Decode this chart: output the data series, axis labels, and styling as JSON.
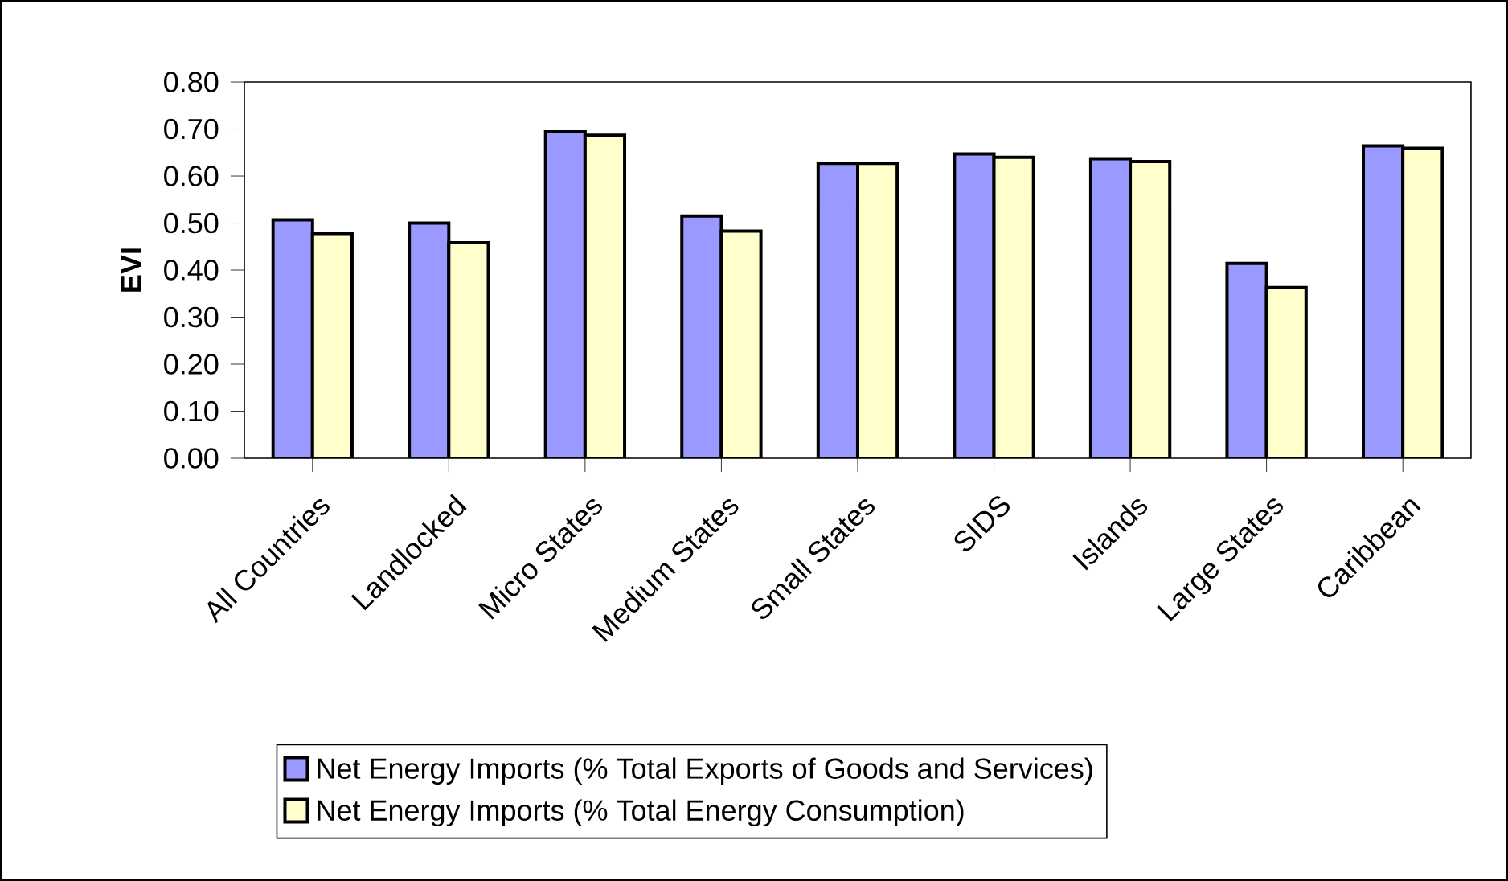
{
  "chart_data": {
    "type": "bar",
    "ylabel": "EVI",
    "legend": "bottom",
    "categories": [
      "All Countries",
      "Landlocked",
      "Micro States",
      "Medium States",
      "Small States",
      "SIDS",
      "Islands",
      "Large States",
      "Caribbean"
    ],
    "series": [
      {
        "name": "Net Energy Imports (% Total Exports of Goods and Services)",
        "color": "#9999ff",
        "values": [
          0.507,
          0.5,
          0.694,
          0.515,
          0.627,
          0.647,
          0.637,
          0.414,
          0.664
        ]
      },
      {
        "name": "Net Energy Imports (% Total Energy Consumption)",
        "color": "#ffffcc",
        "values": [
          0.478,
          0.458,
          0.687,
          0.483,
          0.627,
          0.64,
          0.631,
          0.363,
          0.659
        ]
      }
    ],
    "ylim": [
      0,
      0.8
    ],
    "yticks": [
      {
        "value": 0,
        "label": "0.00"
      },
      {
        "value": 0.1,
        "label": "0.10"
      },
      {
        "value": 0.2,
        "label": "0.20"
      },
      {
        "value": 0.3,
        "label": "0.30"
      },
      {
        "value": 0.4,
        "label": "0.40"
      },
      {
        "value": 0.5,
        "label": "0.50"
      },
      {
        "value": 0.6,
        "label": "0.60"
      },
      {
        "value": 0.7,
        "label": "0.70"
      },
      {
        "value": 0.8,
        "label": "0.80"
      }
    ]
  }
}
